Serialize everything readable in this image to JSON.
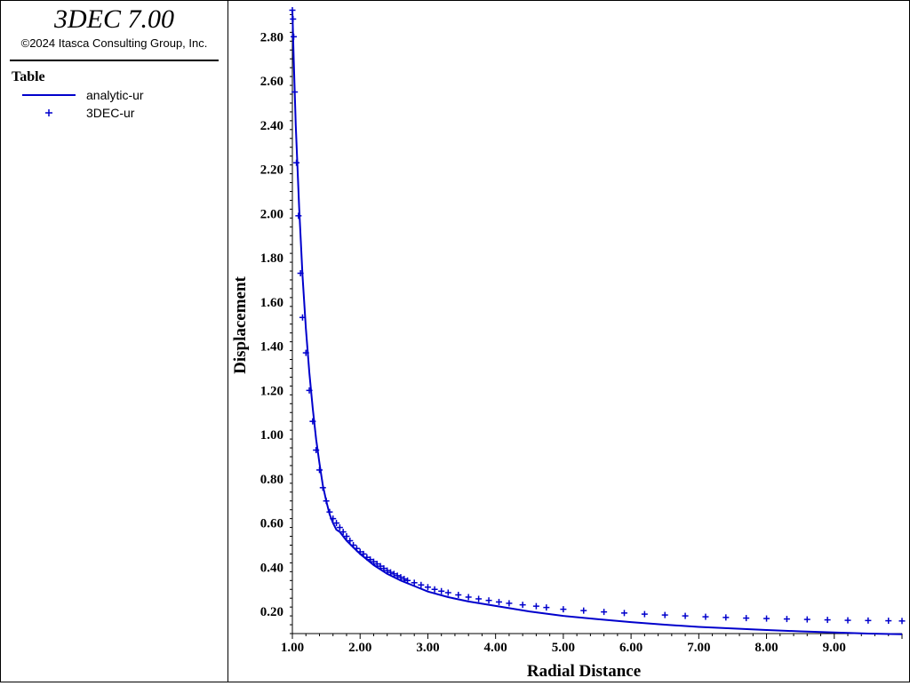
{
  "app": {
    "title": "3DEC 7.00",
    "copyright": "©2024 Itasca Consulting Group, Inc."
  },
  "legend": {
    "title": "Table",
    "entries": [
      {
        "label": "analytic-ur",
        "style": "line",
        "color": "#0000cc"
      },
      {
        "label": "3DEC-ur",
        "style": "plus",
        "color": "#0000cc"
      }
    ]
  },
  "chart_data": {
    "type": "line",
    "title": "",
    "xlabel": "Radial Distance",
    "ylabel": "Displacement",
    "xlim": [
      1.0,
      10.0
    ],
    "ylim": [
      0.1,
      2.93
    ],
    "xticks": [
      "1.00",
      "2.00",
      "3.00",
      "4.00",
      "5.00",
      "6.00",
      "7.00",
      "8.00",
      "9.00"
    ],
    "yticks": [
      "0.20",
      "0.40",
      "0.60",
      "0.80",
      "1.00",
      "1.20",
      "1.40",
      "1.60",
      "1.80",
      "2.00",
      "2.20",
      "2.40",
      "2.60",
      "2.80"
    ],
    "grid": false,
    "legend_position": "left-panel",
    "series": [
      {
        "name": "analytic-ur",
        "style": "line",
        "color": "#0000cc",
        "x": [
          1.0,
          1.02,
          1.05,
          1.1,
          1.15,
          1.2,
          1.25,
          1.3,
          1.35,
          1.4,
          1.45,
          1.5,
          1.55,
          1.6,
          1.65,
          1.7,
          1.8,
          1.9,
          2.0,
          2.2,
          2.4,
          2.6,
          2.8,
          3.0,
          3.3,
          3.6,
          4.0,
          4.5,
          5.0,
          5.5,
          6.0,
          6.5,
          7.0,
          7.5,
          8.0,
          8.5,
          9.0,
          9.5,
          10.0
        ],
        "y": [
          2.92,
          2.7,
          2.4,
          2.03,
          1.72,
          1.48,
          1.28,
          1.12,
          0.98,
          0.87,
          0.77,
          0.7,
          0.64,
          0.6,
          0.57,
          0.56,
          0.52,
          0.49,
          0.46,
          0.41,
          0.37,
          0.34,
          0.315,
          0.29,
          0.265,
          0.245,
          0.225,
          0.2,
          0.18,
          0.165,
          0.152,
          0.14,
          0.13,
          0.123,
          0.116,
          0.11,
          0.105,
          0.1,
          0.097
        ]
      },
      {
        "name": "3DEC-ur",
        "style": "plus",
        "color": "#0000cc",
        "x": [
          1.0,
          1.01,
          1.02,
          1.035,
          1.06,
          1.09,
          1.12,
          1.15,
          1.2,
          1.25,
          1.3,
          1.35,
          1.4,
          1.45,
          1.5,
          1.55,
          1.6,
          1.65,
          1.7,
          1.75,
          1.8,
          1.85,
          1.9,
          1.95,
          2.0,
          2.05,
          2.1,
          2.15,
          2.2,
          2.25,
          2.3,
          2.35,
          2.4,
          2.45,
          2.5,
          2.55,
          2.6,
          2.65,
          2.7,
          2.8,
          2.9,
          3.0,
          3.1,
          3.2,
          3.3,
          3.45,
          3.6,
          3.75,
          3.9,
          4.05,
          4.2,
          4.4,
          4.6,
          4.75,
          5.0,
          5.3,
          5.6,
          5.9,
          6.2,
          6.5,
          6.8,
          7.1,
          7.4,
          7.7,
          8.0,
          8.3,
          8.6,
          8.9,
          9.2,
          9.5,
          9.8,
          10.0
        ],
        "y": [
          2.92,
          2.88,
          2.8,
          2.55,
          2.23,
          1.99,
          1.73,
          1.53,
          1.37,
          1.2,
          1.06,
          0.93,
          0.84,
          0.76,
          0.7,
          0.65,
          0.62,
          0.6,
          0.58,
          0.56,
          0.54,
          0.52,
          0.5,
          0.485,
          0.47,
          0.46,
          0.445,
          0.435,
          0.425,
          0.415,
          0.405,
          0.395,
          0.385,
          0.377,
          0.37,
          0.362,
          0.355,
          0.347,
          0.34,
          0.33,
          0.32,
          0.31,
          0.3,
          0.292,
          0.285,
          0.275,
          0.265,
          0.257,
          0.25,
          0.243,
          0.237,
          0.23,
          0.224,
          0.218,
          0.21,
          0.204,
          0.198,
          0.193,
          0.188,
          0.184,
          0.18,
          0.176,
          0.173,
          0.17,
          0.168,
          0.166,
          0.164,
          0.162,
          0.16,
          0.159,
          0.158,
          0.157
        ]
      }
    ]
  }
}
